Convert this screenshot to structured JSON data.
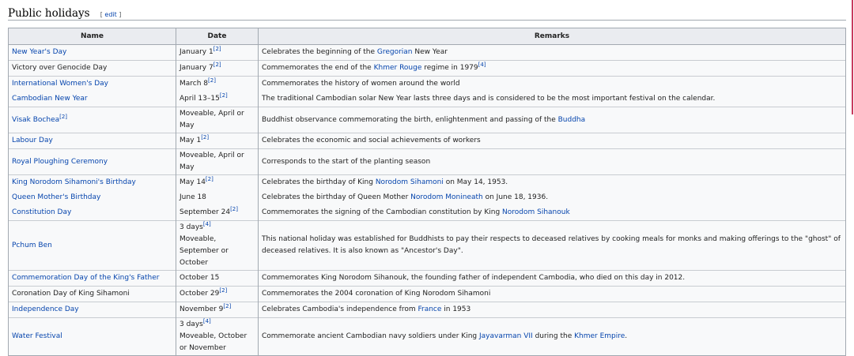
{
  "section": {
    "title": "Public holidays",
    "edit": "edit"
  },
  "headers": [
    "Name",
    "Date",
    "Remarks"
  ],
  "rows": [
    {
      "name": "New Year's Day",
      "name_link": true,
      "date": "January 1",
      "date_ref": "[2]",
      "remarks": [
        {
          "t": "Celebrates the beginning of the "
        },
        {
          "t": "Gregorian",
          "l": true
        },
        {
          "t": " New Year"
        }
      ]
    },
    {
      "name": "Victory over Genocide Day",
      "name_link": false,
      "date": "January 7",
      "date_ref": "[2]",
      "remarks": [
        {
          "t": "Commemorates the end of the "
        },
        {
          "t": "Khmer Rouge",
          "l": true
        },
        {
          "t": " regime in 1979"
        },
        {
          "t": "[4]",
          "s": true
        }
      ]
    },
    {
      "name": "International Women's Day",
      "name_link": true,
      "date": "March 8",
      "date_ref": "[2]",
      "remarks": [
        {
          "t": "Commemorates the history of women around the world"
        }
      ]
    },
    {
      "name": "Cambodian New Year",
      "name_link": true,
      "nb": true,
      "date": "April 13–15",
      "date_ref": "[2]",
      "remarks": [
        {
          "t": "The traditional Cambodian solar New Year lasts three days and is considered to be the most important festival on the calendar."
        }
      ]
    },
    {
      "name": "Visak Bochea",
      "name_ref": "[2]",
      "name_link": true,
      "date": "Moveable, April or May",
      "remarks": [
        {
          "t": "Buddhist observance commemorating the birth, enlightenment and passing of the "
        },
        {
          "t": "Buddha",
          "l": true
        }
      ]
    },
    {
      "name": "Labour Day",
      "name_link": true,
      "date": "May 1",
      "date_ref": "[2]",
      "remarks": [
        {
          "t": "Celebrates the economic and social achievements of workers"
        }
      ]
    },
    {
      "name": "Royal Ploughing Ceremony",
      "name_link": true,
      "date": "Moveable, April or May",
      "remarks": [
        {
          "t": "Corresponds to the start of the planting season"
        }
      ]
    },
    {
      "name": "King Norodom Sihamoni's Birthday",
      "name_link": true,
      "date": "May 14",
      "date_ref": "[2]",
      "remarks": [
        {
          "t": "Celebrates the birthday of King "
        },
        {
          "t": "Norodom Sihamoni",
          "l": true
        },
        {
          "t": " on May 14, 1953."
        }
      ]
    },
    {
      "name": "Queen Mother's Birthday",
      "name_link": true,
      "nb": true,
      "date": "June 18",
      "remarks": [
        {
          "t": "Celebrates the birthday of Queen Mother "
        },
        {
          "t": "Norodom Monineath",
          "l": true
        },
        {
          "t": " on June 18, 1936."
        }
      ]
    },
    {
      "name": "Constitution Day",
      "name_link": true,
      "nb": true,
      "date": "September 24",
      "date_ref": "[2]",
      "remarks": [
        {
          "t": "Commemorates the signing of the Cambodian constitution by King "
        },
        {
          "t": "Norodom Sihanouk",
          "l": true
        }
      ]
    },
    {
      "name": "Pchum Ben",
      "name_link": true,
      "date_pre": "3 days",
      "date_pre_ref": "[4]",
      "date": "Moveable, September or October",
      "remarks": [
        {
          "t": "This national holiday was established for Buddhists to pay their respects to deceased relatives by cooking meals for monks and making offerings to the \"ghost\" of deceased relatives. It is also known as \"Ancestor's Day\"."
        }
      ]
    },
    {
      "name": "Commemoration Day of the King's Father",
      "name_link": true,
      "date": "October 15",
      "remarks": [
        {
          "t": "Commemorates King Norodom Sihanouk, the founding father of independent Cambodia, who died on this day in 2012."
        }
      ]
    },
    {
      "name": "Coronation Day of King Sihamoni",
      "name_link": false,
      "date": "October 29",
      "date_ref": "[2]",
      "remarks": [
        {
          "t": "Commemorates the 2004 coronation of King Norodom Sihamoni"
        }
      ]
    },
    {
      "name": "Independence Day",
      "name_link": true,
      "date": "November 9",
      "date_ref": "[2]",
      "remarks": [
        {
          "t": "Celebrates Cambodia's independence from "
        },
        {
          "t": "France",
          "l": true
        },
        {
          "t": " in 1953"
        }
      ]
    },
    {
      "name": "Water Festival",
      "name_link": true,
      "date_pre": "3 days",
      "date_pre_ref": "[4]",
      "date": "Moveable, October or November",
      "remarks": [
        {
          "t": "Commemorate ancient Cambodian navy soldiers under King "
        },
        {
          "t": "Jayavarman VII",
          "l": true
        },
        {
          "t": " during the "
        },
        {
          "t": "Khmer Empire",
          "l": true
        },
        {
          "t": "."
        }
      ]
    }
  ],
  "colors": {
    "link": "#0645ad",
    "header_bg": "#eaecf0",
    "row_bg": "#f8f9fa",
    "border": "#a2a9b1"
  }
}
